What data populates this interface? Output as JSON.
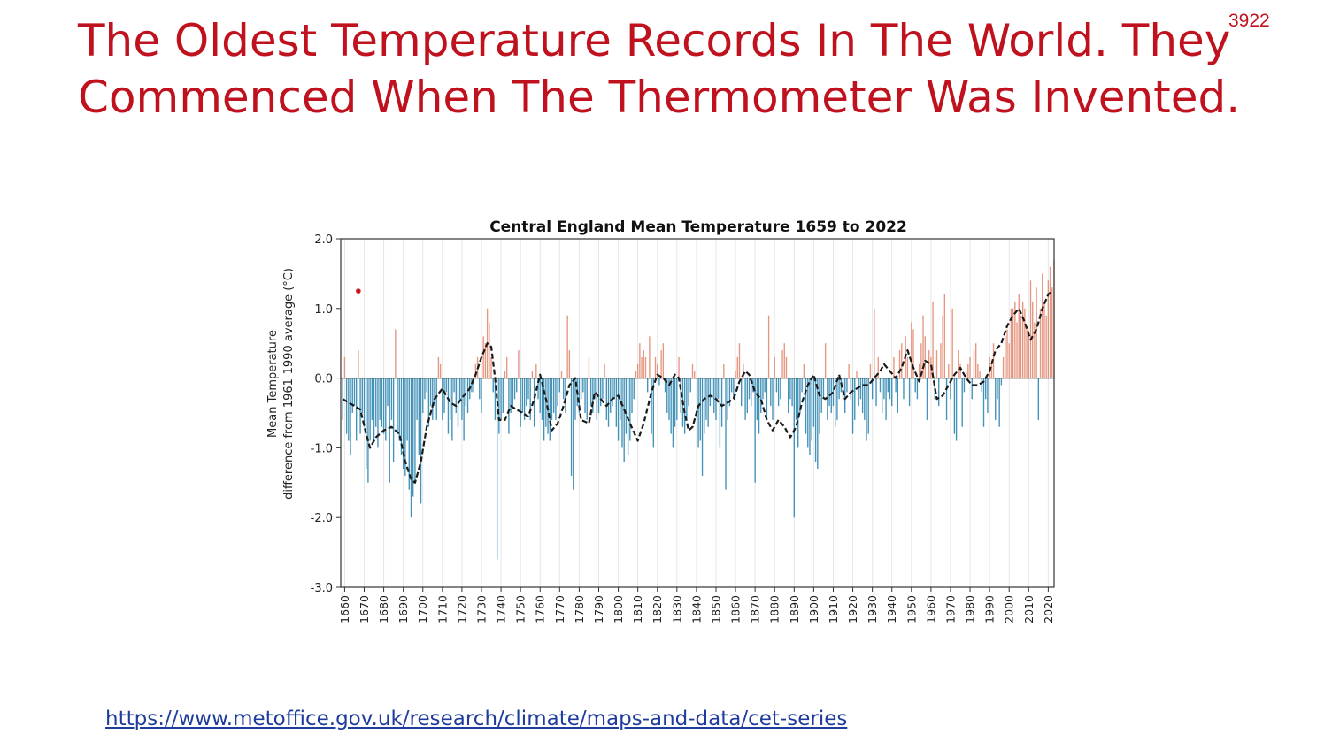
{
  "slide": {
    "title": "The Oldest Temperature Records In The World. They Commenced When The Thermometer Was Invented.",
    "slide_number": "3922",
    "source_link": "https://www.metoffice.gov.uk/research/climate/maps-and-data/cet-series"
  },
  "colors": {
    "title": "#c0121e",
    "link": "#1f3c9c",
    "warm_bars": "#e0846a",
    "cool_bars": "#2f86b0",
    "smooth_line": "#1a1a1a",
    "marker": "#d01818"
  },
  "chart_data": {
    "type": "bar",
    "title": "Central England Mean Temperature 1659 to 2022",
    "xlabel": "",
    "ylabel": "Mean Temperature\ndifference from 1961-1990 average (°C)",
    "ylim": [
      -3.0,
      2.0
    ],
    "xlim": [
      1659,
      2022
    ],
    "y_ticks": [
      "2.0",
      "1.0",
      "0.0",
      "-1.0",
      "-2.0",
      "-3.0"
    ],
    "x_ticks": [
      "1660",
      "1670",
      "1680",
      "1690",
      "1700",
      "1710",
      "1720",
      "1730",
      "1740",
      "1750",
      "1760",
      "1770",
      "1780",
      "1790",
      "1800",
      "1810",
      "1820",
      "1830",
      "1840",
      "1850",
      "1860",
      "1870",
      "1880",
      "1890",
      "1900",
      "1910",
      "1920",
      "1930",
      "1940",
      "1950",
      "1960",
      "1970",
      "1980",
      "1990",
      "2000",
      "2010",
      "2020"
    ],
    "grid": "vertical",
    "marker_point": {
      "x": 1667,
      "y": 1.25
    },
    "series": [
      {
        "type": "bar",
        "x_start": 1659,
        "values": [
          -0.6,
          0.3,
          -0.8,
          -0.9,
          -1.1,
          -0.5,
          -0.4,
          -0.9,
          0.4,
          -0.8,
          -0.5,
          -0.7,
          -1.3,
          -1.5,
          -0.9,
          -0.6,
          -0.9,
          -0.7,
          -1.0,
          -0.6,
          -0.7,
          -0.8,
          -0.9,
          -0.4,
          -1.5,
          -0.6,
          -1.2,
          0.7,
          -0.8,
          -0.9,
          -1.1,
          -1.3,
          -1.4,
          -0.9,
          -1.6,
          -2.0,
          -1.7,
          -1.5,
          -0.6,
          -1.1,
          -1.8,
          -0.5,
          -0.3,
          -0.2,
          -0.7,
          -0.4,
          -0.6,
          -0.4,
          -0.6,
          0.3,
          0.2,
          -0.6,
          -0.5,
          -0.2,
          -0.8,
          -0.6,
          -0.9,
          -0.2,
          -0.5,
          -0.7,
          -0.3,
          -0.6,
          -0.9,
          -0.4,
          -0.5,
          -0.3,
          -0.2,
          -0.2,
          0.2,
          0.3,
          -0.3,
          -0.5,
          0.6,
          0.5,
          1.0,
          0.8,
          0.3,
          -0.2,
          -0.6,
          -2.6,
          -0.8,
          -0.6,
          -0.5,
          0.1,
          0.3,
          -0.8,
          -0.5,
          -0.4,
          -0.3,
          -0.2,
          0.4,
          -0.7,
          -0.5,
          -0.6,
          -0.4,
          -0.3,
          -0.6,
          0.1,
          -0.7,
          0.2,
          -0.3,
          -0.5,
          -0.6,
          -0.9,
          -0.7,
          -0.8,
          -0.9,
          -0.6,
          -0.5,
          -0.6,
          -0.4,
          -0.2,
          0.1,
          -0.3,
          -0.5,
          0.9,
          0.4,
          -1.4,
          -1.6,
          -0.6,
          -0.4,
          -0.5,
          -0.3,
          -0.2,
          -0.5,
          -0.6,
          0.3,
          -0.4,
          -0.5,
          -0.3,
          -0.6,
          -0.5,
          -0.4,
          -0.3,
          0.2,
          -0.6,
          -0.7,
          -0.5,
          -0.4,
          -0.3,
          -0.7,
          -0.9,
          -0.6,
          -1.0,
          -1.2,
          -0.8,
          -1.1,
          -0.9,
          -0.5,
          -0.3,
          0.1,
          0.2,
          0.5,
          0.3,
          0.4,
          0.3,
          -0.2,
          0.6,
          -0.8,
          -1.0,
          0.3,
          0.2,
          -0.1,
          0.4,
          0.5,
          -0.2,
          -0.5,
          -0.6,
          -0.8,
          -1.0,
          -0.7,
          -0.6,
          0.3,
          -0.5,
          -0.7,
          -0.8,
          -0.6,
          -0.4,
          -0.2,
          0.2,
          0.1,
          0.0,
          -1.0,
          -0.9,
          -1.4,
          -0.8,
          -0.6,
          -0.7,
          -0.4,
          -0.3,
          -0.5,
          -0.6,
          -0.3,
          -1.0,
          -0.7,
          0.2,
          -1.6,
          -0.6,
          -0.4,
          -0.2,
          -0.3,
          0.1,
          0.3,
          0.5,
          -0.4,
          0.2,
          -0.6,
          -0.5,
          -0.3,
          -0.4,
          -0.2,
          -1.5,
          -0.6,
          -0.8,
          -0.5,
          -0.3,
          -0.2,
          -0.6,
          0.9,
          -0.4,
          -0.6,
          0.3,
          -0.2,
          -0.4,
          -0.3,
          0.4,
          0.5,
          0.3,
          -0.5,
          -0.3,
          -0.4,
          -2.0,
          -0.6,
          -1.0,
          -0.5,
          -0.2,
          0.2,
          -0.8,
          -1.0,
          -1.1,
          -0.9,
          -0.7,
          -1.2,
          -1.3,
          -0.8,
          -0.5,
          -0.3,
          0.5,
          -0.6,
          -0.4,
          -0.5,
          -0.4,
          -0.7,
          -0.6,
          -0.3,
          -0.2,
          -0.3,
          -0.5,
          -0.2,
          0.2,
          -0.3,
          -0.8,
          -0.6,
          0.1,
          -0.4,
          -0.3,
          -0.5,
          -0.6,
          -0.9,
          -0.8,
          0.2,
          -0.3,
          1.0,
          -0.4,
          0.3,
          -0.2,
          -0.5,
          -0.3,
          -0.6,
          -0.2,
          -0.3,
          -0.4,
          0.3,
          -0.2,
          -0.5,
          0.4,
          0.5,
          -0.3,
          0.6,
          0.3,
          -0.4,
          0.8,
          0.7,
          -0.2,
          -0.3,
          0.2,
          0.5,
          0.9,
          0.6,
          -0.6,
          0.4,
          0.3,
          1.1,
          -0.3,
          0.4,
          -0.4,
          0.5,
          0.9,
          1.2,
          -0.6,
          0.2,
          -0.3,
          1.0,
          -0.8,
          -0.9,
          0.4,
          0.2,
          -0.7,
          -0.2,
          0.1,
          0.2,
          0.3,
          -0.3,
          0.4,
          0.5,
          0.2,
          0.1,
          -0.2,
          -0.7,
          -0.3,
          -0.5,
          0.3,
          0.2,
          0.5,
          -0.6,
          -0.3,
          -0.7,
          -0.1,
          0.3,
          0.6,
          0.7,
          0.5,
          1.0,
          1.0,
          1.1,
          0.8,
          1.2,
          0.9,
          1.1,
          1.0,
          0.7,
          0.6,
          1.4,
          1.1,
          0.8,
          1.3,
          -0.6,
          1.0,
          1.5,
          1.1,
          0.9,
          1.4,
          1.6,
          1.3,
          1.7
        ]
      },
      {
        "type": "line",
        "name": "",
        "style": "dashed",
        "x": [
          1659,
          1662,
          1665,
          1668,
          1671,
          1673,
          1676,
          1680,
          1684,
          1688,
          1691,
          1694,
          1696,
          1699,
          1702,
          1706,
          1710,
          1714,
          1717,
          1721,
          1724,
          1727,
          1730,
          1733,
          1735,
          1737,
          1739,
          1742,
          1745,
          1748,
          1751,
          1754,
          1757,
          1760,
          1763,
          1766,
          1769,
          1772,
          1775,
          1778,
          1781,
          1785,
          1788,
          1791,
          1794,
          1797,
          1800,
          1803,
          1806,
          1810,
          1813,
          1817,
          1820,
          1823,
          1826,
          1829,
          1831,
          1834,
          1836,
          1838,
          1841,
          1844,
          1847,
          1850,
          1853,
          1856,
          1859,
          1862,
          1865,
          1867,
          1870,
          1873,
          1876,
          1879,
          1882,
          1885,
          1888,
          1891,
          1894,
          1897,
          1900,
          1903,
          1906,
          1910,
          1913,
          1916,
          1919,
          1922,
          1925,
          1928,
          1931,
          1934,
          1936,
          1939,
          1942,
          1945,
          1948,
          1951,
          1954,
          1957,
          1960,
          1963,
          1966,
          1969,
          1972,
          1975,
          1978,
          1981,
          1984,
          1987,
          1990,
          1993,
          1996,
          1999,
          2002,
          2005,
          2008,
          2011,
          2014,
          2017,
          2020,
          2022
        ],
        "y": [
          -0.3,
          -0.35,
          -0.4,
          -0.45,
          -0.8,
          -1.0,
          -0.85,
          -0.75,
          -0.7,
          -0.8,
          -1.2,
          -1.45,
          -1.5,
          -1.2,
          -0.7,
          -0.3,
          -0.15,
          -0.35,
          -0.4,
          -0.25,
          -0.15,
          0.05,
          0.3,
          0.5,
          0.45,
          0.0,
          -0.6,
          -0.6,
          -0.4,
          -0.45,
          -0.5,
          -0.55,
          -0.3,
          0.05,
          -0.3,
          -0.75,
          -0.65,
          -0.4,
          -0.1,
          0.0,
          -0.6,
          -0.65,
          -0.2,
          -0.3,
          -0.4,
          -0.3,
          -0.25,
          -0.45,
          -0.65,
          -0.9,
          -0.65,
          -0.2,
          0.05,
          0.0,
          -0.1,
          0.05,
          0.0,
          -0.5,
          -0.75,
          -0.7,
          -0.4,
          -0.3,
          -0.25,
          -0.3,
          -0.4,
          -0.35,
          -0.3,
          -0.05,
          0.1,
          0.05,
          -0.2,
          -0.3,
          -0.6,
          -0.75,
          -0.6,
          -0.7,
          -0.85,
          -0.7,
          -0.35,
          -0.1,
          0.05,
          -0.25,
          -0.3,
          -0.2,
          0.05,
          -0.3,
          -0.2,
          -0.15,
          -0.1,
          -0.1,
          0.0,
          0.1,
          0.2,
          0.1,
          0.0,
          0.15,
          0.4,
          0.15,
          -0.05,
          0.25,
          0.2,
          -0.3,
          -0.25,
          -0.1,
          0.05,
          0.15,
          0.0,
          -0.1,
          -0.1,
          -0.05,
          0.1,
          0.4,
          0.5,
          0.75,
          0.9,
          1.0,
          0.8,
          0.55,
          0.7,
          1.0,
          1.2,
          1.25
        ]
      }
    ]
  }
}
